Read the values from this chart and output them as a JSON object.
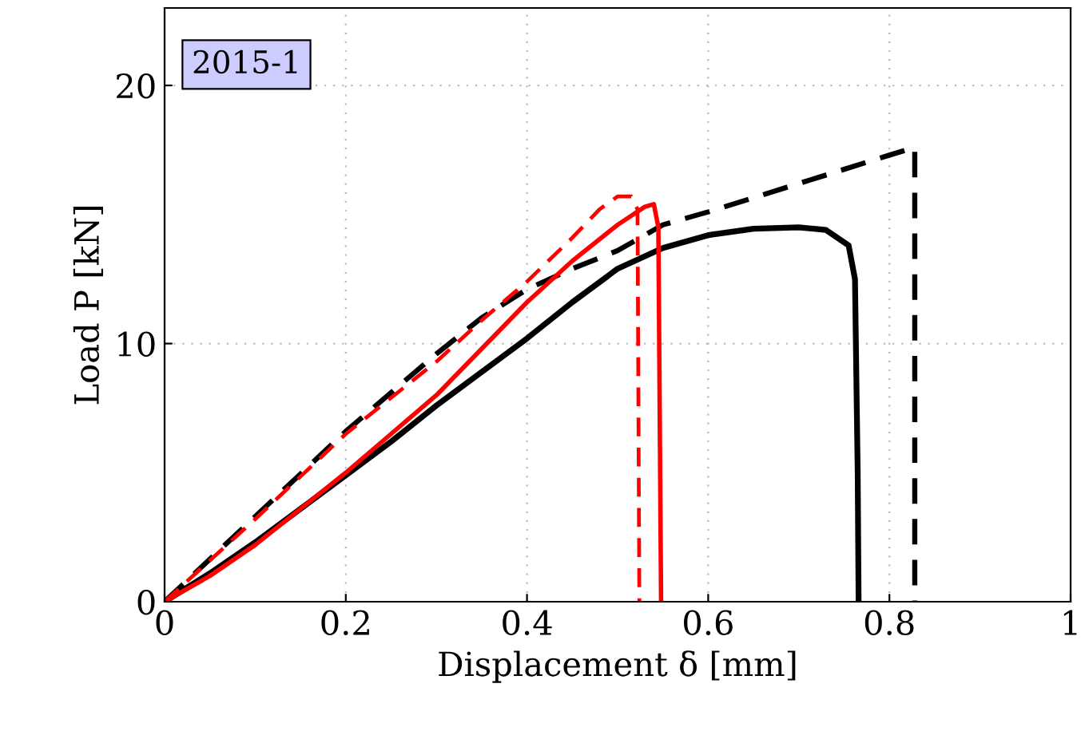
{
  "chart_data": {
    "type": "line",
    "xlabel": "Displacement δ [mm]",
    "ylabel": "Load P [kN]",
    "annotations": [
      "2015-1"
    ],
    "xlim": [
      0,
      1
    ],
    "ylim": [
      0,
      23
    ],
    "xticks": [
      0,
      0.2,
      0.4,
      0.6,
      0.8,
      1
    ],
    "yticks": [
      0,
      10,
      20
    ],
    "grid": true,
    "legend": false,
    "series": [
      {
        "color": "#000000",
        "line_style": "solid",
        "x": [
          0,
          0.05,
          0.1,
          0.15,
          0.2,
          0.25,
          0.3,
          0.35,
          0.4,
          0.45,
          0.5,
          0.55,
          0.6,
          0.65,
          0.7,
          0.73,
          0.755,
          0.762,
          0.765,
          0.766
        ],
        "values": [
          0,
          1.1,
          2.3,
          3.6,
          4.9,
          6.2,
          7.6,
          8.9,
          10.2,
          11.6,
          12.9,
          13.7,
          14.2,
          14.45,
          14.5,
          14.4,
          13.8,
          12.5,
          5,
          0
        ]
      },
      {
        "color": "#000000",
        "line_style": "dashed",
        "x": [
          0,
          0.1,
          0.2,
          0.3,
          0.35,
          0.4,
          0.45,
          0.5,
          0.55,
          0.6,
          0.7,
          0.8,
          0.828,
          0.828
        ],
        "values": [
          0,
          3.3,
          6.6,
          9.6,
          11.0,
          12.1,
          12.9,
          13.6,
          14.6,
          15.1,
          16.2,
          17.3,
          17.6,
          0
        ]
      },
      {
        "color": "#ff0000",
        "line_style": "solid",
        "x": [
          0,
          0.05,
          0.1,
          0.15,
          0.2,
          0.25,
          0.3,
          0.35,
          0.4,
          0.45,
          0.5,
          0.53,
          0.54,
          0.545,
          0.548
        ],
        "values": [
          0,
          1.0,
          2.2,
          3.6,
          5.0,
          6.5,
          8.0,
          9.8,
          11.6,
          13.2,
          14.6,
          15.3,
          15.4,
          14.5,
          0
        ]
      },
      {
        "color": "#ff0000",
        "line_style": "dashed",
        "x": [
          0,
          0.1,
          0.2,
          0.3,
          0.35,
          0.4,
          0.45,
          0.48,
          0.5,
          0.515,
          0.522,
          0.524
        ],
        "values": [
          0,
          3.2,
          6.5,
          9.3,
          10.9,
          12.4,
          14.1,
          15.2,
          15.7,
          15.7,
          15.2,
          0
        ]
      }
    ]
  }
}
